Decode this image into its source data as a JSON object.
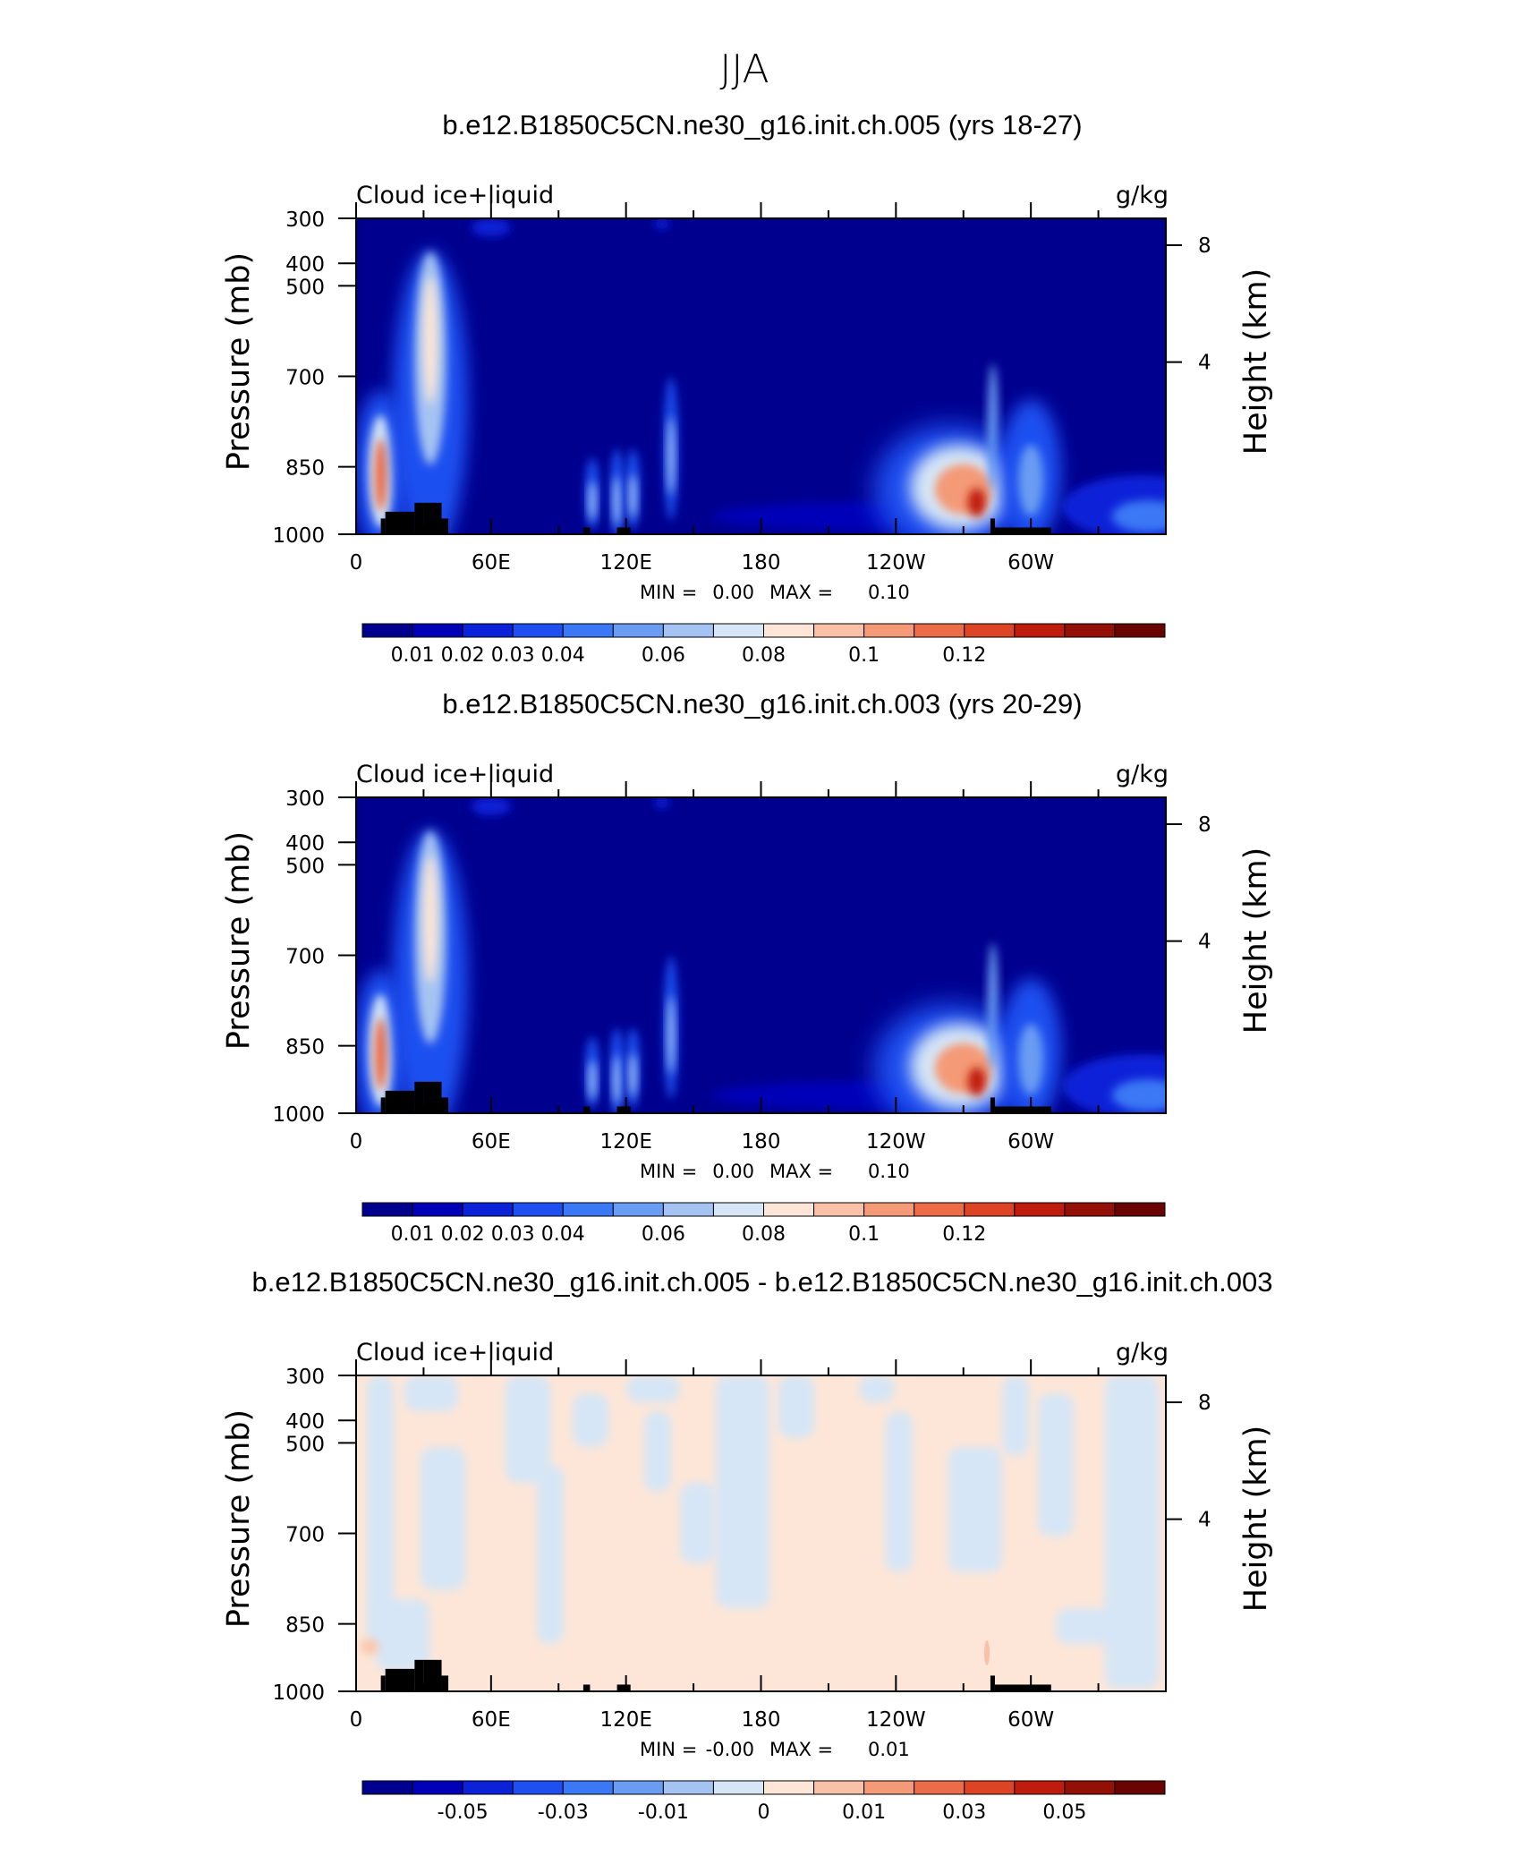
{
  "page_title": "JJA",
  "chart_data": [
    {
      "type": "heatmap",
      "title": "b.e12.B1850C5CN.ne30_g16.init.ch.005 (yrs 18-27)",
      "left_label": "Cloud ice+liquid",
      "right_label": "g/kg",
      "ylabel": "Pressure (mb)",
      "ylabel2": "Height (km)",
      "x_ticks": [
        "0",
        "60E",
        "120E",
        "180",
        "120W",
        "60W"
      ],
      "y_ticks": [
        "300",
        "400",
        "500",
        "700",
        "850",
        "1000"
      ],
      "y2_ticks": [
        "8",
        "4"
      ],
      "xlim": [
        0,
        360
      ],
      "ylim": [
        1000,
        300
      ],
      "min_text": "MIN =",
      "min_value": "0.00",
      "max_text": "MAX =",
      "max_value": "0.10",
      "colorbar_labels": [
        "0.01",
        "0.02",
        "0.03",
        "0.04",
        "0.06",
        "0.08",
        "0.1",
        "0.12"
      ],
      "colorbar_colors": [
        "#00008f",
        "#0000b8",
        "#0c22d8",
        "#1f4ff0",
        "#3b78f5",
        "#6b9cf3",
        "#a5c3f2",
        "#d6e6f6",
        "#fde6d7",
        "#f9c2a8",
        "#f49a76",
        "#ec6c47",
        "#dd4325",
        "#c01c0d",
        "#931007",
        "#6a0402"
      ],
      "features": [
        {
          "lon": 11,
          "p": 860,
          "ry": 90,
          "kind": "strong"
        },
        {
          "lon": 33,
          "p": 680,
          "ry": 170,
          "kind": "column"
        },
        {
          "lon": 105,
          "p": 910,
          "ry": 40,
          "kind": "weak"
        },
        {
          "lon": 116,
          "p": 910,
          "ry": 50,
          "kind": "weak"
        },
        {
          "lon": 123,
          "p": 900,
          "ry": 45,
          "kind": "weak"
        },
        {
          "lon": 140,
          "p": 820,
          "ry": 80,
          "kind": "weak"
        },
        {
          "lon": 268,
          "p": 880,
          "ry": 80,
          "kind": "plume"
        },
        {
          "lon": 300,
          "p": 860,
          "ry": 80,
          "kind": "mid"
        },
        {
          "lon": 350,
          "p": 930,
          "ry": 50,
          "kind": "edge"
        }
      ],
      "topography": [
        [
          11,
          975
        ],
        [
          13,
          965
        ],
        [
          20,
          965
        ],
        [
          26,
          950
        ],
        [
          30,
          930
        ],
        [
          38,
          930
        ],
        [
          41,
          970
        ],
        [
          101,
          975
        ],
        [
          104,
          975
        ],
        [
          117,
          975
        ],
        [
          122,
          975
        ],
        [
          282,
          965
        ],
        [
          284,
          975
        ],
        [
          309,
          975
        ]
      ]
    },
    {
      "type": "heatmap",
      "title": "b.e12.B1850C5CN.ne30_g16.init.ch.003 (yrs 20-29)",
      "left_label": "Cloud ice+liquid",
      "right_label": "g/kg",
      "ylabel": "Pressure (mb)",
      "ylabel2": "Height (km)",
      "x_ticks": [
        "0",
        "60E",
        "120E",
        "180",
        "120W",
        "60W"
      ],
      "y_ticks": [
        "300",
        "400",
        "500",
        "700",
        "850",
        "1000"
      ],
      "y2_ticks": [
        "8",
        "4"
      ],
      "xlim": [
        0,
        360
      ],
      "ylim": [
        1000,
        300
      ],
      "min_text": "MIN =",
      "min_value": "0.00",
      "max_text": "MAX =",
      "max_value": "0.10",
      "colorbar_labels": [
        "0.01",
        "0.02",
        "0.03",
        "0.04",
        "0.06",
        "0.08",
        "0.1",
        "0.12"
      ],
      "colorbar_colors": [
        "#00008f",
        "#0000b8",
        "#0c22d8",
        "#1f4ff0",
        "#3b78f5",
        "#6b9cf3",
        "#a5c3f2",
        "#d6e6f6",
        "#fde6d7",
        "#f9c2a8",
        "#f49a76",
        "#ec6c47",
        "#dd4325",
        "#c01c0d",
        "#931007",
        "#6a0402"
      ]
    },
    {
      "type": "heatmap",
      "title": "b.e12.B1850C5CN.ne30_g16.init.ch.005 - b.e12.B1850C5CN.ne30_g16.init.ch.003",
      "left_label": "Cloud ice+liquid",
      "right_label": "g/kg",
      "ylabel": "Pressure (mb)",
      "ylabel2": "Height (km)",
      "x_ticks": [
        "0",
        "60E",
        "120E",
        "180",
        "120W",
        "60W"
      ],
      "y_ticks": [
        "300",
        "400",
        "500",
        "700",
        "850",
        "1000"
      ],
      "y2_ticks": [
        "8",
        "4"
      ],
      "xlim": [
        0,
        360
      ],
      "ylim": [
        1000,
        300
      ],
      "min_text": "MIN =",
      "min_value": "-0.00",
      "max_text": "MAX =",
      "max_value": "0.01",
      "colorbar_labels": [
        "-0.05",
        "-0.03",
        "-0.01",
        "0",
        "0.01",
        "0.03",
        "0.05"
      ],
      "colorbar_colors": [
        "#00008f",
        "#0000b8",
        "#0c22d8",
        "#1f4ff0",
        "#3b78f5",
        "#6b9cf3",
        "#a5c3f2",
        "#d6e6f6",
        "#fde6d7",
        "#f9c2a8",
        "#f49a76",
        "#ec6c47",
        "#dd4325",
        "#c01c0d",
        "#931007",
        "#6a0402"
      ],
      "diff_colors": {
        "positive": "#fde6d7",
        "negative": "#d6e6f6"
      }
    }
  ]
}
